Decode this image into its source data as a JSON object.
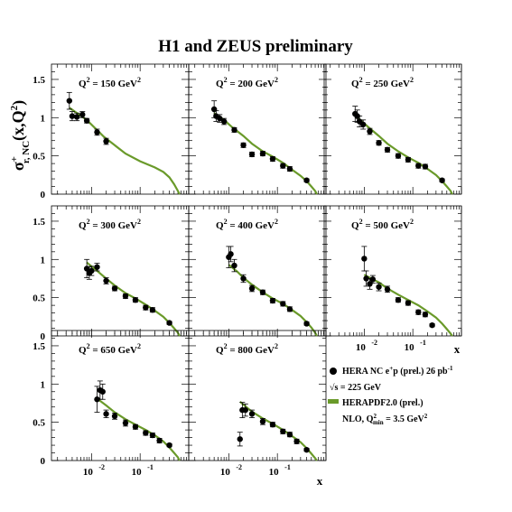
{
  "title": "H1 and ZEUS preliminary",
  "y_axis_label": "σ",
  "y_axis_label_sup": "+",
  "y_axis_label_sub": "r, NC",
  "y_axis_label_rest": "(x,Q",
  "y_axis_label_q_sup": "2",
  "y_axis_label_close": ")",
  "x_axis_label": "x",
  "legend": {
    "data_label": "HERA NC e",
    "data_label_sup": "+",
    "data_label_rest": "p (prel.) 26 pb",
    "data_label_sup2": "-1",
    "sqrt_s_label": "√s = 225 GeV",
    "fit_label": "HERAPDF2.0 (prel.)",
    "nlo_label": "NLO, Q",
    "nlo_sup": "2",
    "nlo_sub": "min",
    "nlo_rest": " = 3.5 GeV",
    "nlo_sup2": "2"
  },
  "colors": {
    "fit": "#6a9a2a",
    "data": "#000000",
    "frame": "#000000"
  },
  "chart_data": {
    "type": "scatter",
    "x_scale": "log",
    "xlim": [
      0.0015,
      1
    ],
    "ylim": [
      0,
      1.7
    ],
    "y_ticks": [
      "0",
      "0.5",
      "1",
      "1.5"
    ],
    "x_tick_labels": [
      "10",
      "10"
    ],
    "x_tick_exponents": [
      "-2",
      "-1"
    ],
    "panels": [
      {
        "q2_label": "Q",
        "q2_sup": "2",
        "q2_value": " = 150 GeV",
        "unit_sup": "2",
        "points": [
          {
            "x": 0.0035,
            "y": 1.22,
            "err": 0.11
          },
          {
            "x": 0.004,
            "y": 1.02,
            "err": 0.06
          },
          {
            "x": 0.005,
            "y": 1.01,
            "err": 0.05
          },
          {
            "x": 0.0065,
            "y": 1.04,
            "err": 0.04
          },
          {
            "x": 0.008,
            "y": 0.96,
            "err": 0.03
          },
          {
            "x": 0.013,
            "y": 0.81,
            "err": 0.04
          },
          {
            "x": 0.02,
            "y": 0.69,
            "err": 0.04
          }
        ],
        "fit": [
          [
            0.0035,
            1.13
          ],
          [
            0.005,
            1.06
          ],
          [
            0.008,
            0.97
          ],
          [
            0.012,
            0.86
          ],
          [
            0.018,
            0.75
          ],
          [
            0.03,
            0.64
          ],
          [
            0.05,
            0.53
          ],
          [
            0.1,
            0.43
          ],
          [
            0.2,
            0.35
          ],
          [
            0.3,
            0.29
          ],
          [
            0.4,
            0.22
          ],
          [
            0.5,
            0.13
          ],
          [
            0.6,
            0.04
          ],
          [
            0.65,
            0.0
          ]
        ]
      },
      {
        "q2_label": "Q",
        "q2_sup": "2",
        "q2_value": " = 200 GeV",
        "unit_sup": "2",
        "points": [
          {
            "x": 0.005,
            "y": 1.11,
            "err": 0.11
          },
          {
            "x": 0.0055,
            "y": 1.02,
            "err": 0.07
          },
          {
            "x": 0.0065,
            "y": 0.99,
            "err": 0.05
          },
          {
            "x": 0.008,
            "y": 0.95,
            "err": 0.04
          },
          {
            "x": 0.013,
            "y": 0.84,
            "err": 0.03
          },
          {
            "x": 0.02,
            "y": 0.64,
            "err": 0.03
          },
          {
            "x": 0.03,
            "y": 0.52,
            "err": 0.03
          },
          {
            "x": 0.05,
            "y": 0.53,
            "err": 0.03
          },
          {
            "x": 0.08,
            "y": 0.46,
            "err": 0.03
          },
          {
            "x": 0.13,
            "y": 0.37,
            "err": 0.03
          },
          {
            "x": 0.18,
            "y": 0.33,
            "err": 0.03
          },
          {
            "x": 0.4,
            "y": 0.18,
            "err": 0.02
          }
        ],
        "fit": [
          [
            0.005,
            1.06
          ],
          [
            0.008,
            0.97
          ],
          [
            0.012,
            0.87
          ],
          [
            0.02,
            0.76
          ],
          [
            0.03,
            0.66
          ],
          [
            0.05,
            0.56
          ],
          [
            0.08,
            0.49
          ],
          [
            0.13,
            0.41
          ],
          [
            0.2,
            0.32
          ],
          [
            0.3,
            0.24
          ],
          [
            0.4,
            0.17
          ],
          [
            0.5,
            0.1
          ],
          [
            0.6,
            0.04
          ],
          [
            0.65,
            0.0
          ]
        ]
      },
      {
        "q2_label": "Q",
        "q2_sup": "2",
        "q2_value": " = 250 GeV",
        "unit_sup": "2",
        "points": [
          {
            "x": 0.0065,
            "y": 1.05,
            "err": 0.1
          },
          {
            "x": 0.0072,
            "y": 1.02,
            "err": 0.08
          },
          {
            "x": 0.008,
            "y": 0.95,
            "err": 0.07
          },
          {
            "x": 0.0095,
            "y": 0.91,
            "err": 0.06
          },
          {
            "x": 0.013,
            "y": 0.82,
            "err": 0.04
          },
          {
            "x": 0.02,
            "y": 0.67,
            "err": 0.03
          },
          {
            "x": 0.03,
            "y": 0.58,
            "err": 0.03
          },
          {
            "x": 0.05,
            "y": 0.5,
            "err": 0.03
          },
          {
            "x": 0.08,
            "y": 0.45,
            "err": 0.03
          },
          {
            "x": 0.13,
            "y": 0.37,
            "err": 0.03
          },
          {
            "x": 0.18,
            "y": 0.36,
            "err": 0.03
          },
          {
            "x": 0.4,
            "y": 0.18,
            "err": 0.02
          }
        ],
        "fit": [
          [
            0.0065,
            1.03
          ],
          [
            0.008,
            0.98
          ],
          [
            0.012,
            0.88
          ],
          [
            0.02,
            0.76
          ],
          [
            0.03,
            0.66
          ],
          [
            0.05,
            0.56
          ],
          [
            0.08,
            0.48
          ],
          [
            0.13,
            0.41
          ],
          [
            0.2,
            0.33
          ],
          [
            0.3,
            0.25
          ],
          [
            0.4,
            0.17
          ],
          [
            0.5,
            0.1
          ],
          [
            0.6,
            0.04
          ],
          [
            0.65,
            0.0
          ]
        ]
      },
      {
        "q2_label": "Q",
        "q2_sup": "2",
        "q2_value": " = 300 GeV",
        "unit_sup": "2",
        "points": [
          {
            "x": 0.008,
            "y": 0.88,
            "err": 0.12
          },
          {
            "x": 0.009,
            "y": 0.82,
            "err": 0.08
          },
          {
            "x": 0.01,
            "y": 0.85,
            "err": 0.06
          },
          {
            "x": 0.013,
            "y": 0.9,
            "err": 0.05
          },
          {
            "x": 0.02,
            "y": 0.72,
            "err": 0.04
          },
          {
            "x": 0.03,
            "y": 0.62,
            "err": 0.03
          },
          {
            "x": 0.05,
            "y": 0.52,
            "err": 0.03
          },
          {
            "x": 0.08,
            "y": 0.47,
            "err": 0.03
          },
          {
            "x": 0.13,
            "y": 0.37,
            "err": 0.03
          },
          {
            "x": 0.18,
            "y": 0.34,
            "err": 0.03
          },
          {
            "x": 0.4,
            "y": 0.17,
            "err": 0.02
          }
        ],
        "fit": [
          [
            0.008,
            0.96
          ],
          [
            0.012,
            0.87
          ],
          [
            0.02,
            0.75
          ],
          [
            0.03,
            0.66
          ],
          [
            0.05,
            0.56
          ],
          [
            0.08,
            0.49
          ],
          [
            0.13,
            0.41
          ],
          [
            0.2,
            0.33
          ],
          [
            0.3,
            0.25
          ],
          [
            0.4,
            0.17
          ],
          [
            0.5,
            0.1
          ],
          [
            0.6,
            0.04
          ],
          [
            0.65,
            0.0
          ]
        ]
      },
      {
        "q2_label": "Q",
        "q2_sup": "2",
        "q2_value": " = 400 GeV",
        "unit_sup": "2",
        "points": [
          {
            "x": 0.01,
            "y": 1.03,
            "err": 0.14
          },
          {
            "x": 0.011,
            "y": 1.07,
            "err": 0.1
          },
          {
            "x": 0.013,
            "y": 0.92,
            "err": 0.08
          },
          {
            "x": 0.02,
            "y": 0.75,
            "err": 0.05
          },
          {
            "x": 0.03,
            "y": 0.62,
            "err": 0.04
          },
          {
            "x": 0.05,
            "y": 0.57,
            "err": 0.03
          },
          {
            "x": 0.08,
            "y": 0.46,
            "err": 0.03
          },
          {
            "x": 0.13,
            "y": 0.42,
            "err": 0.03
          },
          {
            "x": 0.18,
            "y": 0.35,
            "err": 0.03
          },
          {
            "x": 0.4,
            "y": 0.16,
            "err": 0.02
          }
        ],
        "fit": [
          [
            0.01,
            0.93
          ],
          [
            0.015,
            0.84
          ],
          [
            0.02,
            0.76
          ],
          [
            0.03,
            0.67
          ],
          [
            0.05,
            0.57
          ],
          [
            0.08,
            0.49
          ],
          [
            0.13,
            0.42
          ],
          [
            0.2,
            0.34
          ],
          [
            0.3,
            0.26
          ],
          [
            0.4,
            0.18
          ],
          [
            0.5,
            0.11
          ],
          [
            0.6,
            0.04
          ],
          [
            0.65,
            0.0
          ]
        ]
      },
      {
        "q2_label": "Q",
        "q2_sup": "2",
        "q2_value": " = 500 GeV",
        "unit_sup": "2",
        "points": [
          {
            "x": 0.01,
            "y": 1.01,
            "err": 0.16
          },
          {
            "x": 0.011,
            "y": 0.75,
            "err": 0.1
          },
          {
            "x": 0.013,
            "y": 0.68,
            "err": 0.07
          },
          {
            "x": 0.015,
            "y": 0.74,
            "err": 0.05
          },
          {
            "x": 0.02,
            "y": 0.64,
            "err": 0.05
          },
          {
            "x": 0.03,
            "y": 0.61,
            "err": 0.04
          },
          {
            "x": 0.05,
            "y": 0.47,
            "err": 0.03
          },
          {
            "x": 0.08,
            "y": 0.43,
            "err": 0.03
          },
          {
            "x": 0.13,
            "y": 0.31,
            "err": 0.03
          },
          {
            "x": 0.18,
            "y": 0.28,
            "err": 0.03
          },
          {
            "x": 0.25,
            "y": 0.14,
            "err": 0.02
          }
        ],
        "fit": [
          [
            0.01,
            0.8
          ],
          [
            0.015,
            0.74
          ],
          [
            0.02,
            0.7
          ],
          [
            0.03,
            0.62
          ],
          [
            0.05,
            0.54
          ],
          [
            0.08,
            0.47
          ],
          [
            0.13,
            0.4
          ],
          [
            0.2,
            0.32
          ],
          [
            0.3,
            0.24
          ],
          [
            0.4,
            0.16
          ],
          [
            0.5,
            0.09
          ],
          [
            0.6,
            0.03
          ],
          [
            0.65,
            0.0
          ]
        ]
      },
      {
        "q2_label": "Q",
        "q2_sup": "2",
        "q2_value": " = 650 GeV",
        "unit_sup": "2",
        "points": [
          {
            "x": 0.013,
            "y": 0.8,
            "err": 0.17
          },
          {
            "x": 0.015,
            "y": 0.92,
            "err": 0.12
          },
          {
            "x": 0.017,
            "y": 0.9,
            "err": 0.1
          },
          {
            "x": 0.02,
            "y": 0.61,
            "err": 0.05
          },
          {
            "x": 0.03,
            "y": 0.58,
            "err": 0.04
          },
          {
            "x": 0.05,
            "y": 0.49,
            "err": 0.04
          },
          {
            "x": 0.08,
            "y": 0.44,
            "err": 0.03
          },
          {
            "x": 0.13,
            "y": 0.36,
            "err": 0.03
          },
          {
            "x": 0.18,
            "y": 0.33,
            "err": 0.03
          },
          {
            "x": 0.25,
            "y": 0.26,
            "err": 0.03
          },
          {
            "x": 0.4,
            "y": 0.2,
            "err": 0.02
          }
        ],
        "fit": [
          [
            0.013,
            0.81
          ],
          [
            0.02,
            0.72
          ],
          [
            0.03,
            0.63
          ],
          [
            0.05,
            0.54
          ],
          [
            0.08,
            0.47
          ],
          [
            0.13,
            0.4
          ],
          [
            0.2,
            0.33
          ],
          [
            0.3,
            0.25
          ],
          [
            0.4,
            0.17
          ],
          [
            0.5,
            0.1
          ],
          [
            0.6,
            0.04
          ],
          [
            0.65,
            0.0
          ]
        ]
      },
      {
        "q2_label": "Q",
        "q2_sup": "2",
        "q2_value": " = 800 GeV",
        "unit_sup": "2",
        "points": [
          {
            "x": 0.017,
            "y": 0.28,
            "err": 0.09
          },
          {
            "x": 0.019,
            "y": 0.66,
            "err": 0.1
          },
          {
            "x": 0.022,
            "y": 0.66,
            "err": 0.08
          },
          {
            "x": 0.03,
            "y": 0.61,
            "err": 0.05
          },
          {
            "x": 0.05,
            "y": 0.51,
            "err": 0.04
          },
          {
            "x": 0.08,
            "y": 0.47,
            "err": 0.03
          },
          {
            "x": 0.13,
            "y": 0.38,
            "err": 0.03
          },
          {
            "x": 0.18,
            "y": 0.34,
            "err": 0.03
          },
          {
            "x": 0.25,
            "y": 0.25,
            "err": 0.03
          },
          {
            "x": 0.4,
            "y": 0.14,
            "err": 0.02
          }
        ],
        "fit": [
          [
            0.017,
            0.77
          ],
          [
            0.02,
            0.73
          ],
          [
            0.03,
            0.64
          ],
          [
            0.05,
            0.55
          ],
          [
            0.08,
            0.48
          ],
          [
            0.13,
            0.4
          ],
          [
            0.2,
            0.32
          ],
          [
            0.3,
            0.24
          ],
          [
            0.4,
            0.16
          ],
          [
            0.5,
            0.09
          ],
          [
            0.6,
            0.03
          ],
          [
            0.65,
            0.0
          ]
        ]
      }
    ]
  }
}
